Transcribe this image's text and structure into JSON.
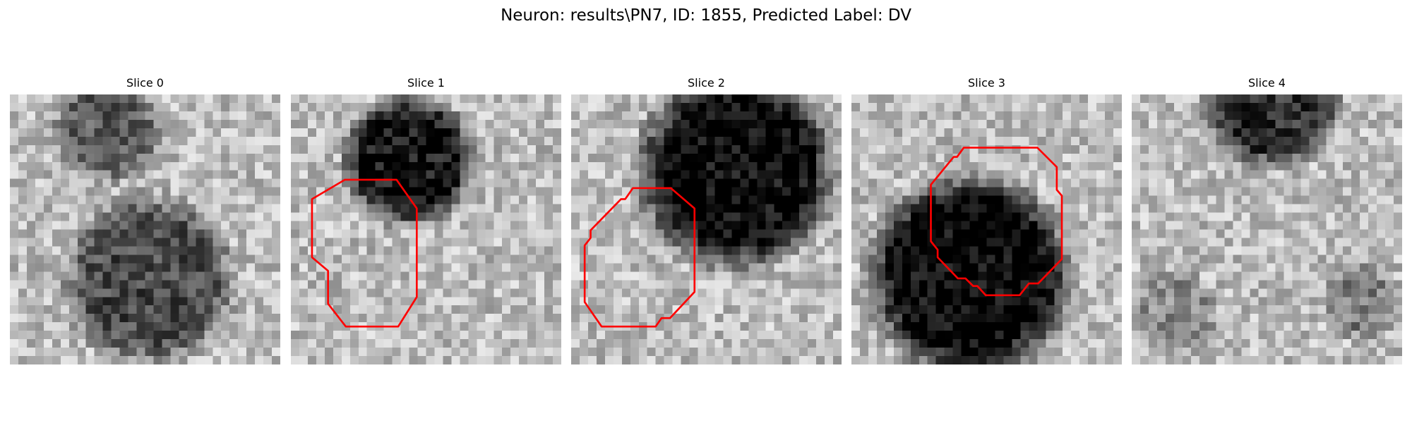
{
  "figure": {
    "title": "Neuron: results\\PN7, ID: 1855, Predicted Label: DV"
  },
  "colors": {
    "contour": "#ff0000",
    "background": "#ffffff"
  },
  "image": {
    "colormap": "gray",
    "grid_size": 32
  },
  "panels": [
    {
      "title": "Slice 0",
      "blobs": [
        {
          "cx": 11.5,
          "cy": 4.2,
          "r": 5.5,
          "depth": 0.38
        },
        {
          "cx": 16.5,
          "cy": 22.0,
          "r": 8.8,
          "depth": 0.45
        }
      ],
      "contour": []
    },
    {
      "title": "Slice 1",
      "blobs": [
        {
          "cx": 14.0,
          "cy": 7.8,
          "r": 6.8,
          "depth": 0.65
        }
      ],
      "contour": [
        [
          6.4,
          10.1
        ],
        [
          12.5,
          10.1
        ],
        [
          14.9,
          13.5
        ],
        [
          14.9,
          24.0
        ],
        [
          12.7,
          27.5
        ],
        [
          6.5,
          27.5
        ],
        [
          4.4,
          24.8
        ],
        [
          4.4,
          20.9
        ],
        [
          2.5,
          19.3
        ],
        [
          2.5,
          12.4
        ]
      ]
    },
    {
      "title": "Slice 2",
      "blobs": [
        {
          "cx": 19.5,
          "cy": 9.0,
          "r": 10.2,
          "depth": 0.7
        }
      ],
      "contour": [
        [
          7.3,
          11.1
        ],
        [
          11.8,
          11.1
        ],
        [
          14.6,
          13.5
        ],
        [
          14.6,
          23.4
        ],
        [
          11.7,
          26.5
        ],
        [
          10.7,
          26.5
        ],
        [
          10.0,
          27.5
        ],
        [
          3.6,
          27.5
        ],
        [
          1.6,
          24.6
        ],
        [
          1.6,
          17.9
        ],
        [
          2.3,
          17.0
        ],
        [
          2.3,
          16.1
        ],
        [
          5.9,
          12.4
        ],
        [
          6.4,
          12.4
        ]
      ]
    },
    {
      "title": "Slice 3",
      "blobs": [
        {
          "cx": 14.0,
          "cy": 21.5,
          "r": 10.5,
          "depth": 0.72
        }
      ],
      "contour": [
        [
          13.3,
          6.3
        ],
        [
          22.0,
          6.3
        ],
        [
          24.3,
          8.6
        ],
        [
          24.3,
          11.3
        ],
        [
          24.9,
          12.0
        ],
        [
          24.9,
          19.5
        ],
        [
          22.1,
          22.4
        ],
        [
          21.0,
          22.4
        ],
        [
          19.9,
          23.8
        ],
        [
          15.9,
          23.8
        ],
        [
          14.9,
          22.7
        ],
        [
          14.4,
          22.7
        ],
        [
          13.5,
          21.8
        ],
        [
          12.6,
          21.8
        ],
        [
          10.2,
          19.3
        ],
        [
          10.2,
          18.4
        ],
        [
          9.4,
          17.4
        ],
        [
          9.4,
          10.7
        ],
        [
          12.1,
          7.4
        ],
        [
          12.5,
          7.4
        ]
      ]
    },
    {
      "title": "Slice 4",
      "blobs": [
        {
          "cx": 16.5,
          "cy": 0.5,
          "r": 7.2,
          "depth": 0.55
        },
        {
          "cx": 27.0,
          "cy": 24.5,
          "r": 4.0,
          "depth": 0.25
        },
        {
          "cx": 5.0,
          "cy": 26.0,
          "r": 4.5,
          "depth": 0.2
        }
      ],
      "contour": []
    }
  ]
}
